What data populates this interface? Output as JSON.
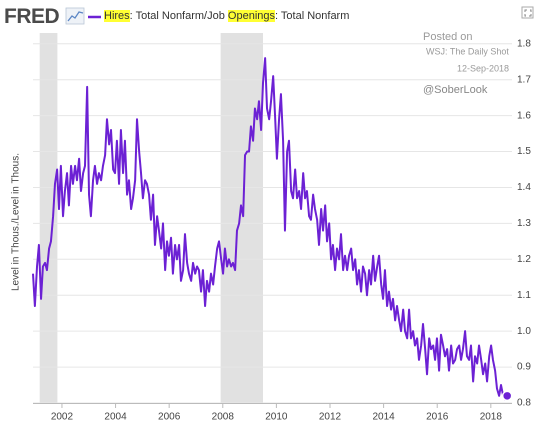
{
  "logo": "FRED",
  "chart_data": {
    "type": "line",
    "highlights": [
      "Hires",
      "Openings"
    ],
    "y_axis_label": "Level in Thous./Level in Thous.",
    "annotations": [
      "Posted on",
      "WSJ: The Daily Shot",
      "12-Sep-2018",
      "@SoberLook"
    ],
    "recessions": [
      [
        2001.17,
        2001.83
      ],
      [
        2007.92,
        2009.5
      ]
    ],
    "xlim": [
      2000.92,
      2018.79
    ],
    "xticks": [
      2002,
      2004,
      2006,
      2008,
      2010,
      2012,
      2014,
      2016,
      2018
    ],
    "ylim": [
      0.8,
      1.83
    ],
    "yticks": [
      0.8,
      0.9,
      {
        "value": 1,
        "label": "1.0"
      },
      1.1,
      1.2,
      1.3,
      1.4,
      1.5,
      1.6,
      1.7,
      1.8
    ],
    "grid": true,
    "x": [
      2000.92,
      2000.99,
      2001.07,
      2001.14,
      2001.22,
      2001.29,
      2001.37,
      2001.44,
      2001.52,
      2001.59,
      2001.67,
      2001.74,
      2001.82,
      2001.89,
      2001.96,
      2002.04,
      2002.11,
      2002.19,
      2002.26,
      2002.34,
      2002.41,
      2002.49,
      2002.56,
      2002.64,
      2002.71,
      2002.79,
      2002.86,
      2002.94,
      2003.01,
      2003.08,
      2003.16,
      2003.23,
      2003.31,
      2003.38,
      2003.46,
      2003.53,
      2003.61,
      2003.68,
      2003.76,
      2003.83,
      2003.91,
      2003.98,
      2004.05,
      2004.13,
      2004.2,
      2004.28,
      2004.35,
      2004.43,
      2004.5,
      2004.58,
      2004.65,
      2004.73,
      2004.8,
      2004.88,
      2004.95,
      2005.02,
      2005.1,
      2005.17,
      2005.25,
      2005.32,
      2005.4,
      2005.47,
      2005.55,
      2005.62,
      2005.7,
      2005.77,
      2005.85,
      2005.92,
      2005.99,
      2006.07,
      2006.14,
      2006.22,
      2006.29,
      2006.37,
      2006.44,
      2006.52,
      2006.59,
      2006.67,
      2006.74,
      2006.82,
      2006.89,
      2006.97,
      2007.04,
      2007.11,
      2007.19,
      2007.26,
      2007.34,
      2007.41,
      2007.49,
      2007.56,
      2007.64,
      2007.71,
      2007.79,
      2007.86,
      2007.94,
      2008.01,
      2008.08,
      2008.16,
      2008.23,
      2008.31,
      2008.38,
      2008.46,
      2008.53,
      2008.61,
      2008.68,
      2008.76,
      2008.83,
      2008.91,
      2008.98,
      2009.05,
      2009.13,
      2009.2,
      2009.28,
      2009.35,
      2009.43,
      2009.5,
      2009.58,
      2009.65,
      2009.73,
      2009.8,
      2009.88,
      2009.95,
      2010.02,
      2010.1,
      2010.17,
      2010.25,
      2010.32,
      2010.4,
      2010.47,
      2010.55,
      2010.62,
      2010.7,
      2010.77,
      2010.85,
      2010.92,
      2011.0,
      2011.07,
      2011.14,
      2011.22,
      2011.29,
      2011.37,
      2011.44,
      2011.52,
      2011.59,
      2011.67,
      2011.74,
      2011.82,
      2011.89,
      2011.97,
      2012.04,
      2012.11,
      2012.19,
      2012.26,
      2012.34,
      2012.41,
      2012.49,
      2012.56,
      2012.64,
      2012.71,
      2012.79,
      2012.86,
      2012.94,
      2013.01,
      2013.08,
      2013.16,
      2013.23,
      2013.31,
      2013.38,
      2013.46,
      2013.53,
      2013.61,
      2013.68,
      2013.76,
      2013.83,
      2013.91,
      2013.98,
      2014.05,
      2014.13,
      2014.2,
      2014.28,
      2014.35,
      2014.43,
      2014.5,
      2014.58,
      2014.65,
      2014.73,
      2014.8,
      2014.88,
      2014.95,
      2015.02,
      2015.1,
      2015.17,
      2015.25,
      2015.32,
      2015.4,
      2015.47,
      2015.55,
      2015.62,
      2015.7,
      2015.77,
      2015.85,
      2015.92,
      2015.99,
      2016.07,
      2016.14,
      2016.22,
      2016.29,
      2016.37,
      2016.44,
      2016.52,
      2016.59,
      2016.67,
      2016.74,
      2016.82,
      2016.89,
      2016.96,
      2017.04,
      2017.11,
      2017.19,
      2017.26,
      2017.34,
      2017.41,
      2017.49,
      2017.56,
      2017.64,
      2017.71,
      2017.79,
      2017.86,
      2017.94,
      2018.01,
      2018.08,
      2018.16,
      2018.23,
      2018.31,
      2018.38,
      2018.46,
      2018.53,
      2018.61
    ],
    "series": [
      {
        "name": "Hires: Total Nonfarm/Job Openings: Total Nonfarm",
        "color": "#6c21d4",
        "values": [
          1.16,
          1.07,
          1.18,
          1.24,
          1.09,
          1.18,
          1.19,
          1.17,
          1.23,
          1.25,
          1.32,
          1.41,
          1.45,
          1.34,
          1.46,
          1.32,
          1.39,
          1.44,
          1.35,
          1.46,
          1.41,
          1.46,
          1.42,
          1.48,
          1.39,
          1.44,
          1.46,
          1.68,
          1.38,
          1.32,
          1.42,
          1.46,
          1.41,
          1.44,
          1.42,
          1.46,
          1.49,
          1.59,
          1.52,
          1.56,
          1.45,
          1.44,
          1.53,
          1.41,
          1.56,
          1.44,
          1.53,
          1.38,
          1.42,
          1.34,
          1.37,
          1.42,
          1.59,
          1.5,
          1.44,
          1.37,
          1.42,
          1.41,
          1.38,
          1.31,
          1.38,
          1.24,
          1.32,
          1.28,
          1.23,
          1.3,
          1.17,
          1.25,
          1.21,
          1.26,
          1.16,
          1.24,
          1.2,
          1.24,
          1.14,
          1.17,
          1.27,
          1.19,
          1.16,
          1.14,
          1.19,
          1.16,
          1.18,
          1.17,
          1.11,
          1.17,
          1.07,
          1.14,
          1.11,
          1.16,
          1.13,
          1.18,
          1.23,
          1.25,
          1.2,
          1.16,
          1.23,
          1.18,
          1.2,
          1.18,
          1.19,
          1.17,
          1.28,
          1.3,
          1.35,
          1.32,
          1.49,
          1.5,
          1.5,
          1.57,
          1.53,
          1.62,
          1.59,
          1.64,
          1.56,
          1.69,
          1.76,
          1.62,
          1.59,
          1.64,
          1.71,
          1.6,
          1.48,
          1.59,
          1.66,
          1.53,
          1.28,
          1.5,
          1.53,
          1.39,
          1.37,
          1.45,
          1.37,
          1.39,
          1.34,
          1.44,
          1.37,
          1.39,
          1.32,
          1.31,
          1.38,
          1.34,
          1.31,
          1.24,
          1.34,
          1.28,
          1.35,
          1.25,
          1.3,
          1.2,
          1.24,
          1.17,
          1.23,
          1.2,
          1.27,
          1.17,
          1.21,
          1.17,
          1.21,
          1.23,
          1.17,
          1.2,
          1.13,
          1.17,
          1.11,
          1.18,
          1.16,
          1.1,
          1.17,
          1.13,
          1.21,
          1.14,
          1.18,
          1.21,
          1.13,
          1.09,
          1.17,
          1.07,
          1.11,
          1.06,
          1.09,
          1.03,
          1.07,
          1.03,
          1.0,
          1.06,
          1.0,
          0.98,
          1.06,
          0.98,
          1.0,
          0.96,
          0.98,
          0.92,
          0.96,
          1.02,
          0.95,
          0.88,
          0.98,
          0.95,
          0.96,
          0.92,
          0.98,
          0.89,
          0.99,
          0.96,
          0.93,
          0.95,
          0.89,
          0.96,
          0.91,
          0.92,
          0.95,
          0.96,
          0.92,
          0.95,
          1.0,
          0.93,
          0.92,
          0.96,
          0.86,
          0.93,
          0.91,
          0.96,
          0.92,
          0.88,
          0.91,
          0.86,
          0.93,
          0.96,
          0.92,
          0.89,
          0.84,
          0.82,
          0.85,
          0.82,
          0.81,
          0.82
        ]
      }
    ]
  }
}
